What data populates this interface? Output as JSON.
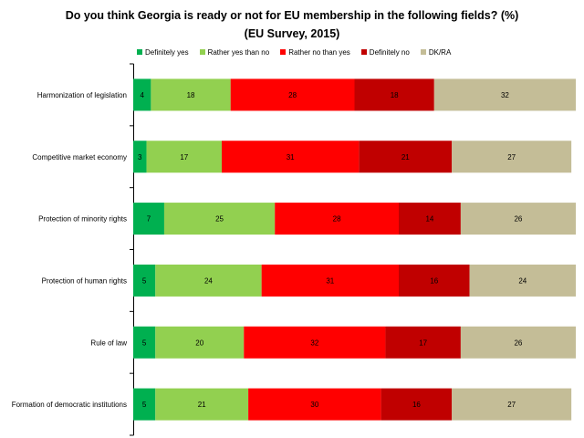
{
  "chart_data": {
    "type": "bar",
    "orientation": "horizontal",
    "stacked": true,
    "title": "Do you think Georgia is ready or not for EU membership in the following fields? (%)",
    "subtitle": "(EU Survey, 2015)",
    "xlim": [
      0,
      100
    ],
    "legend_position": "top",
    "categories": [
      "Harmonization of legislation",
      "Competitive market economy",
      "Protection of minority rights",
      "Protection of human rights",
      "Rule of law",
      "Formation of democratic institutions"
    ],
    "series": [
      {
        "name": "Definitely yes",
        "color": "#00B050",
        "values": [
          4,
          3,
          7,
          5,
          5,
          5
        ]
      },
      {
        "name": "Rather yes than no",
        "color": "#92D050",
        "values": [
          18,
          17,
          25,
          24,
          20,
          21
        ]
      },
      {
        "name": "Rather no than yes",
        "color": "#FF0000",
        "values": [
          28,
          31,
          28,
          31,
          32,
          30
        ]
      },
      {
        "name": "Definitely no",
        "color": "#C00000",
        "values": [
          18,
          21,
          14,
          16,
          17,
          16
        ]
      },
      {
        "name": "DK/RA",
        "color": "#C4BD97",
        "values": [
          32,
          27,
          26,
          24,
          26,
          27
        ]
      }
    ]
  }
}
